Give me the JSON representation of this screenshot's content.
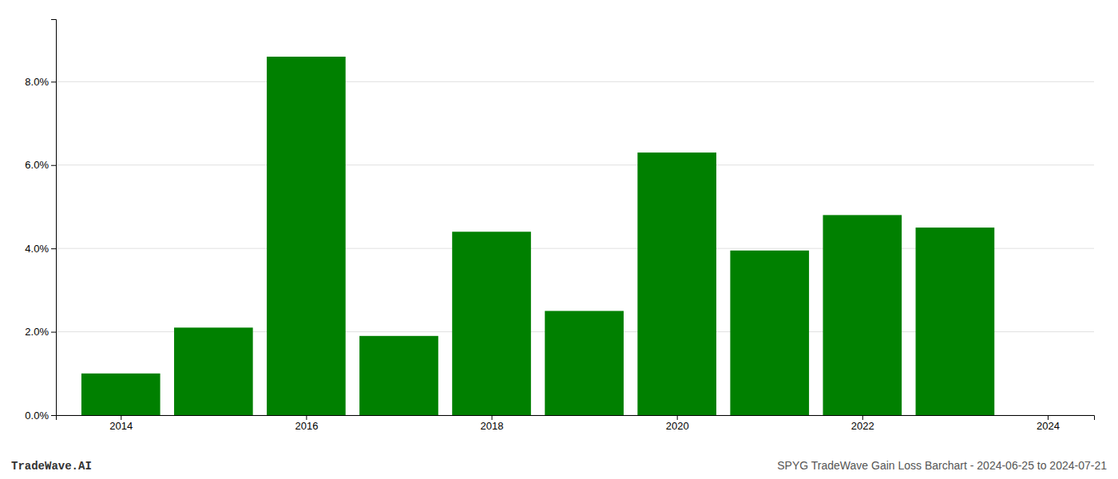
{
  "chart_data": {
    "type": "bar",
    "x": [
      2014,
      2015,
      2016,
      2017,
      2018,
      2019,
      2020,
      2021,
      2022,
      2023
    ],
    "values": [
      0.01,
      0.021,
      0.086,
      0.019,
      0.044,
      0.025,
      0.063,
      0.0395,
      0.048,
      0.045
    ],
    "color": "#008000",
    "xlim": [
      2013.3,
      2024.5
    ],
    "xticks": [
      2014,
      2016,
      2018,
      2020,
      2022,
      2024
    ],
    "ylim": [
      0,
      0.095
    ],
    "yticks": [
      {
        "value": 0.0,
        "label": "0.0%"
      },
      {
        "value": 0.02,
        "label": "2.0%"
      },
      {
        "value": 0.04,
        "label": "4.0%"
      },
      {
        "value": 0.06,
        "label": "6.0%"
      },
      {
        "value": 0.08,
        "label": "8.0%"
      }
    ],
    "grid": true,
    "annotations": [
      "TradeWave.AI",
      "SPYG TradeWave Gain Loss Barchart - 2024-06-25 to 2024-07-21"
    ]
  }
}
